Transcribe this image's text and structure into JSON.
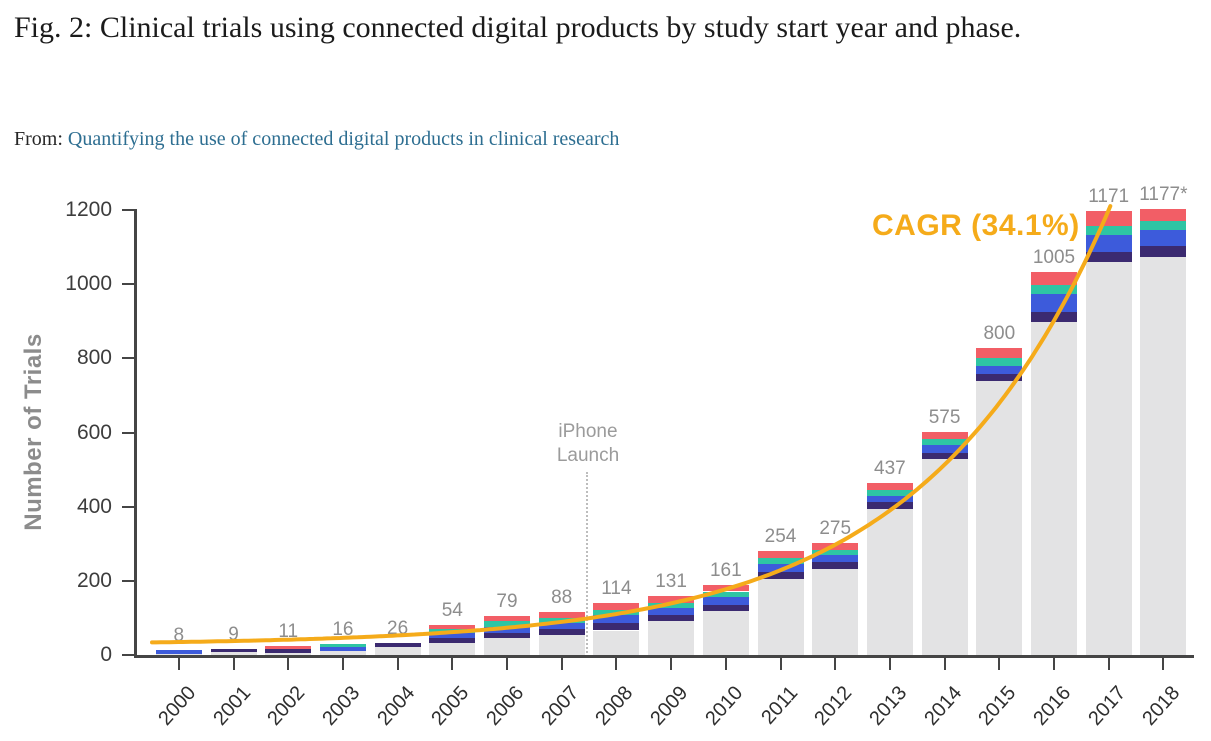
{
  "figure": {
    "title": "Fig. 2: Clinical trials using connected digital products by study start year and phase.",
    "source_prefix": "From: ",
    "source_link": "Quantifying the use of connected digital products in clinical research",
    "link_color": "#2d6e91"
  },
  "chart_data": {
    "type": "bar",
    "stacked": true,
    "ylabel": "Number of Trials",
    "xlabel": "",
    "ylim": [
      0,
      1200
    ],
    "ytick_labels": [
      "0",
      "200",
      "400",
      "600",
      "800",
      "1000",
      "1200"
    ],
    "grid": false,
    "legend": "none",
    "categories": [
      "2000",
      "2001",
      "2002",
      "2003",
      "2004",
      "2005",
      "2006",
      "2007",
      "2008",
      "2009",
      "2010",
      "2011",
      "2012",
      "2013",
      "2014",
      "2015",
      "2016",
      "2017",
      "2018"
    ],
    "totals": [
      8,
      9,
      11,
      16,
      26,
      54,
      79,
      88,
      114,
      131,
      161,
      254,
      275,
      437,
      575,
      800,
      1005,
      1171,
      1177
    ],
    "total_labels": [
      "8",
      "9",
      "11",
      "16",
      "26",
      "54",
      "79",
      "88",
      "114",
      "131",
      "161",
      "254",
      "275",
      "437",
      "575",
      "800",
      "1005",
      "1171",
      "1177*"
    ],
    "series": [
      {
        "name": "base-gray",
        "color": "#e3e3e4",
        "values": [
          3,
          7,
          6,
          10,
          21,
          32,
          47,
          53,
          66,
          91,
          118,
          205,
          232,
          394,
          529,
          738,
          897,
          1061,
          1074
        ]
      },
      {
        "name": "segment-indigo",
        "color": "#3b2a70",
        "values": [
          0,
          2,
          3,
          0,
          5,
          8,
          7,
          11,
          14,
          10,
          11,
          12,
          11,
          11,
          10,
          12,
          22,
          20,
          23
        ]
      },
      {
        "name": "segment-blue",
        "color": "#3d5bdb",
        "values": [
          5,
          0,
          0,
          4,
          0,
          6,
          8,
          8,
          14,
          12,
          13,
          14,
          12,
          11,
          14,
          17,
          40,
          37,
          35
        ]
      },
      {
        "name": "segment-teal",
        "color": "#2ec5a4",
        "values": [
          0,
          0,
          0,
          2,
          0,
          4,
          9,
          8,
          8,
          8,
          9,
          10,
          9,
          10,
          10,
          13,
          19,
          18,
          18
        ]
      },
      {
        "name": "segment-red",
        "color": "#f25e66",
        "values": [
          0,
          0,
          2,
          0,
          0,
          4,
          8,
          8,
          12,
          10,
          10,
          13,
          11,
          11,
          12,
          20,
          27,
          35,
          27
        ]
      }
    ],
    "annotations": {
      "cagr_label": "CAGR (34.1%)",
      "cagr_rate_percent": 34.1,
      "cagr_color": "#f5ab1a",
      "iphone_label": "iPhone Launch",
      "iphone_between_years": [
        "2007",
        "2008"
      ]
    }
  }
}
